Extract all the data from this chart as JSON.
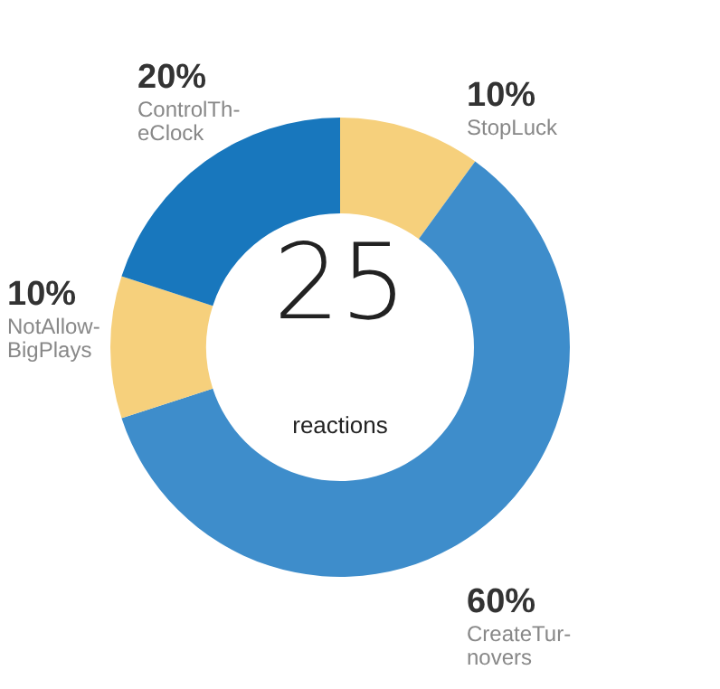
{
  "chart_data": {
    "type": "donut",
    "categories": [
      "StopLuck",
      "CreateTur-\nnovers",
      "NotAllow-\nBigPlays",
      "ControlTh-\neClock"
    ],
    "values": [
      10,
      60,
      10,
      20
    ],
    "colors": [
      "#f6d07c",
      "#3e8dcb",
      "#f6d07c",
      "#1877bd"
    ],
    "value_labels": [
      "10%",
      "60%",
      "10%",
      "20%"
    ],
    "annotations": [
      "25",
      "reactions"
    ]
  }
}
